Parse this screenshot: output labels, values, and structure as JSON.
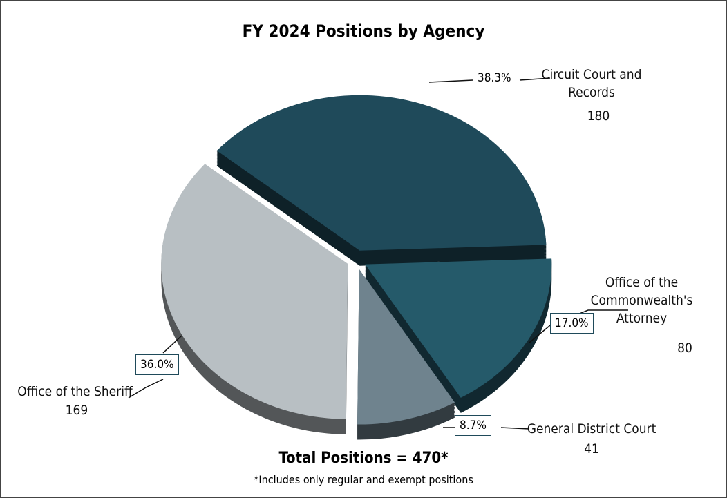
{
  "chart_data": {
    "type": "pie",
    "title": "FY 2024 Positions by Agency",
    "categories": [
      "Circuit Court and Records",
      "Office of the Commonwealth's Attorney",
      "General District Court",
      "Office of the Sheriff"
    ],
    "values": [
      180,
      80,
      41,
      169
    ],
    "percent_labels": [
      "38.3%",
      "17.0%",
      "8.7%",
      "36.0%"
    ],
    "colors": [
      "#1f4a5a",
      "#255a6a",
      "#6f838e",
      "#b8bfc3"
    ],
    "total_label": "Total Positions = 470*",
    "footnote": "*Includes only regular and exempt positions"
  }
}
